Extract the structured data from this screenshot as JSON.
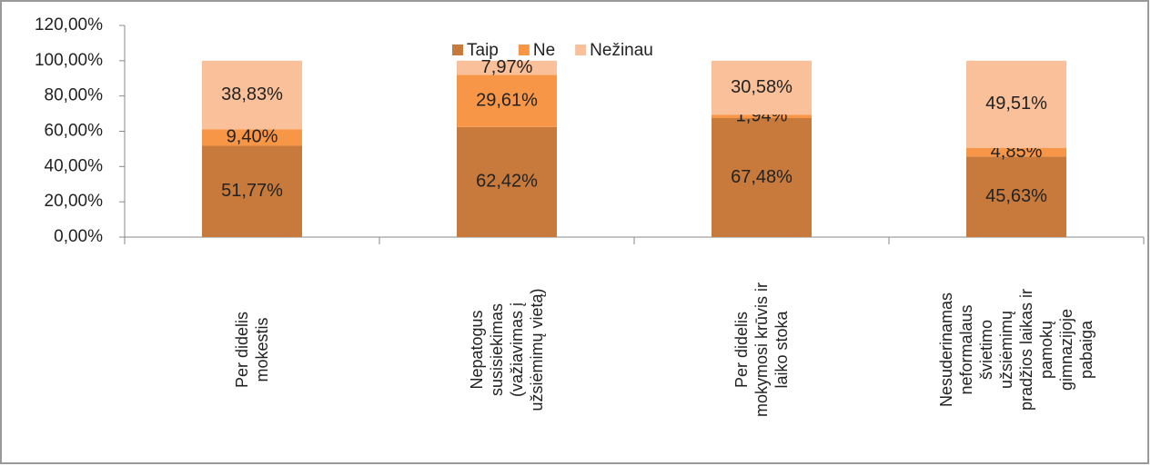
{
  "chart_data": {
    "type": "stacked_bar",
    "categories": [
      "Per didelis\nmokestis",
      "Nepatogus\nsusisiekimas\n(važiavimas į\nužsiėmimų vietą)",
      "Per didelis\nmokymosi krūvis ir\nlaiko stoka",
      "Nesuderinamas\nneformalaus\nšvietimo\nužsiėmimų\npradžios laikas ir\npamokų\ngimnazijoje\npabaiga"
    ],
    "series": [
      {
        "name": "Taip",
        "color": "#c77a3b",
        "values": [
          51.77,
          62.42,
          67.48,
          45.63
        ],
        "value_labels": [
          "51,77%",
          "62,42%",
          "67,48%",
          "45,63%"
        ]
      },
      {
        "name": "Ne",
        "color": "#f79646",
        "values": [
          9.4,
          29.61,
          1.94,
          4.85
        ],
        "value_labels": [
          "9,40%",
          "29,61%",
          "1,94%",
          "4,85%"
        ]
      },
      {
        "name": "Nežinau",
        "color": "#fac09a",
        "values": [
          38.83,
          7.97,
          30.58,
          49.51
        ],
        "value_labels": [
          "38,83%",
          "7,97%",
          "30,58%",
          "49,51%"
        ]
      }
    ],
    "ylim": [
      0,
      120
    ],
    "yticks": [
      {
        "value": 0,
        "label": "0,00%"
      },
      {
        "value": 20,
        "label": "20,00%"
      },
      {
        "value": 40,
        "label": "40,00%"
      },
      {
        "value": 60,
        "label": "60,00%"
      },
      {
        "value": 80,
        "label": "80,00%"
      },
      {
        "value": 100,
        "label": "100,00%"
      },
      {
        "value": 120,
        "label": "120,00%"
      }
    ],
    "legend": "top"
  }
}
